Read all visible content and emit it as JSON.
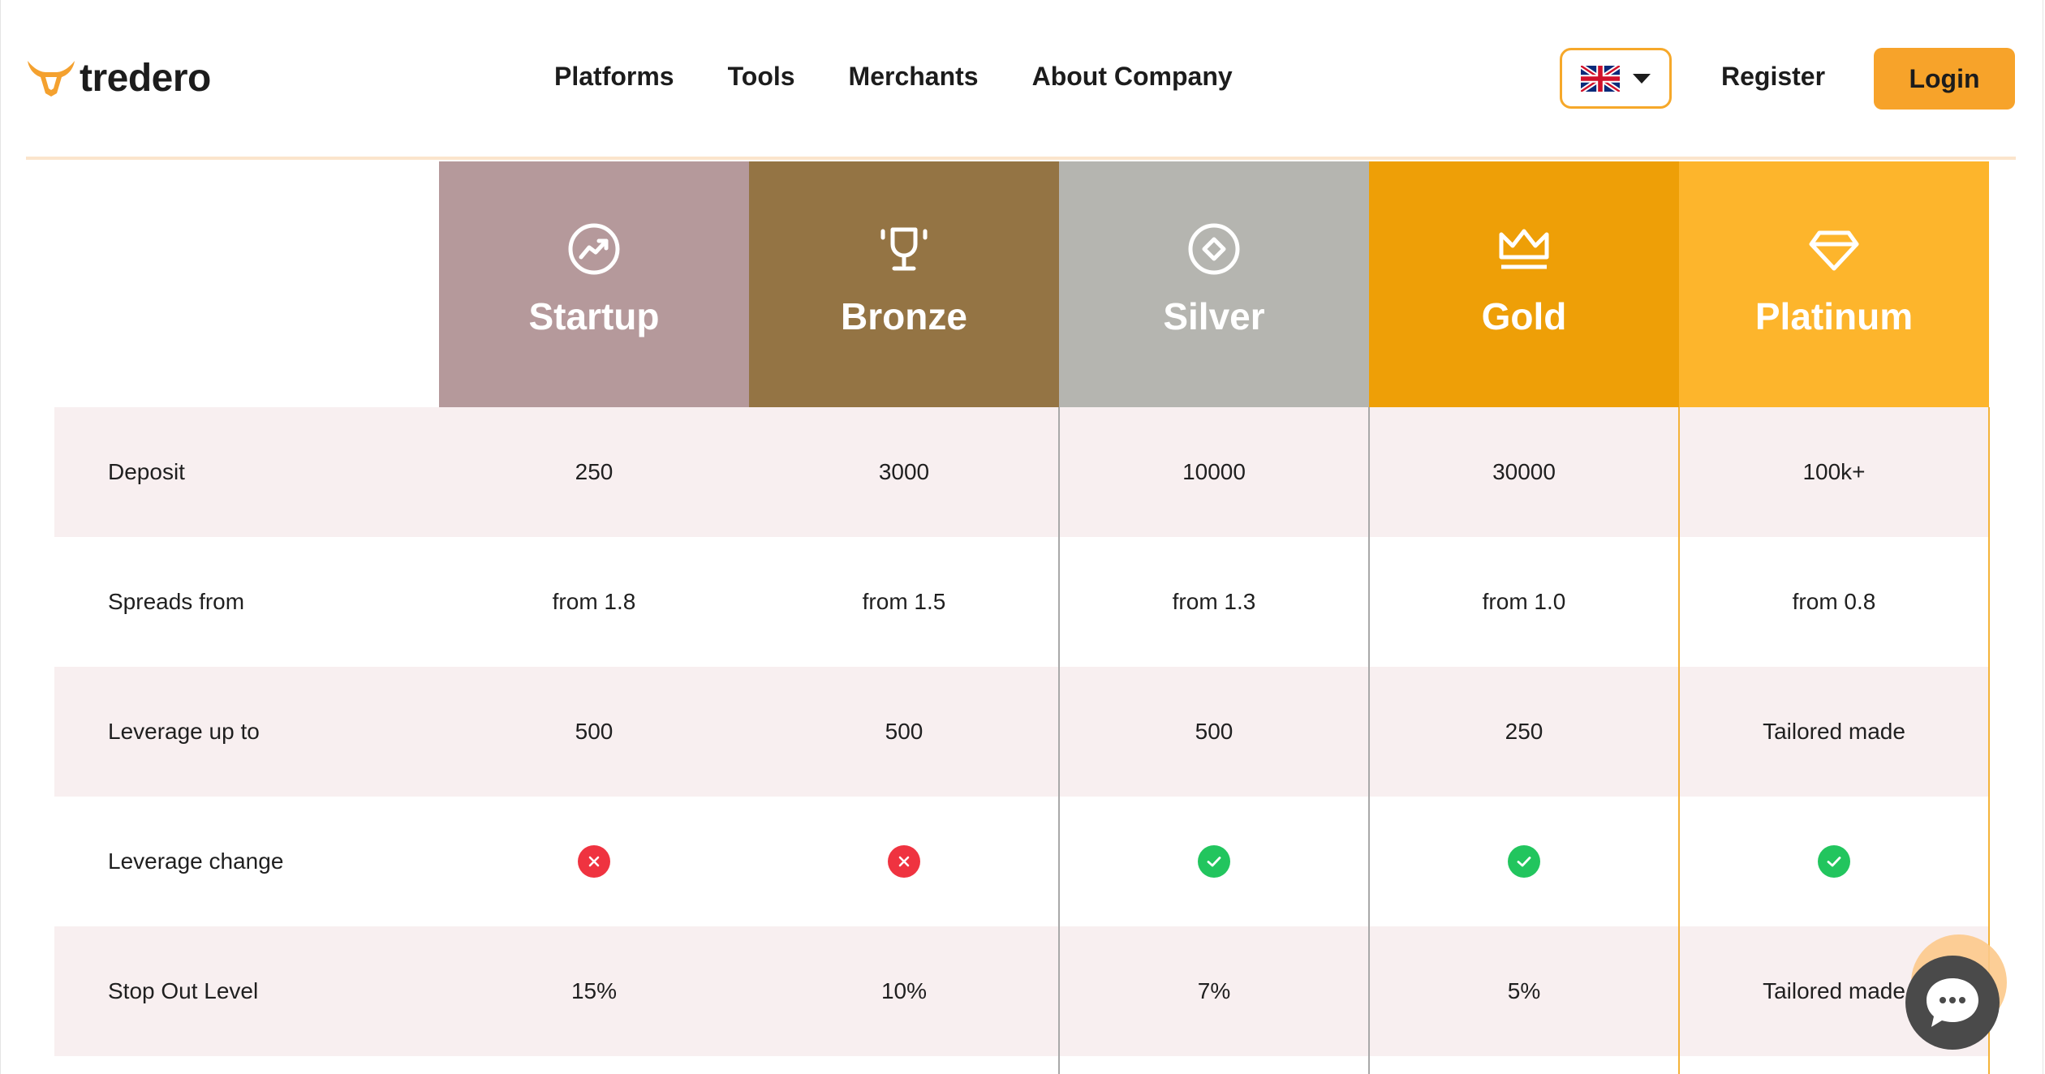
{
  "brand": {
    "name": "tredero"
  },
  "nav": {
    "items": [
      "Platforms",
      "Tools",
      "Merchants",
      "About Company"
    ],
    "language_icon": "uk-flag-icon",
    "register_label": "Register",
    "login_label": "Login"
  },
  "colors": {
    "accent": "#f7a32a",
    "startup": "#b5999b",
    "bronze": "#947444",
    "silver": "#b5b5b0",
    "gold": "#ee9f07",
    "platinum": "#fdb52c",
    "row_shade": "#f8eff0",
    "check": "#22c55e",
    "cross": "#ef3340"
  },
  "plans": [
    {
      "name": "Startup",
      "icon": "trending-up-icon"
    },
    {
      "name": "Bronze",
      "icon": "trophy-icon"
    },
    {
      "name": "Silver",
      "icon": "diamond-circle-icon"
    },
    {
      "name": "Gold",
      "icon": "crown-icon"
    },
    {
      "name": "Platinum",
      "icon": "gem-icon"
    }
  ],
  "rows": [
    {
      "label": "Deposit",
      "values": [
        "250",
        "3000",
        "10000",
        "30000",
        "100k+"
      ]
    },
    {
      "label": "Spreads from",
      "values": [
        "from 1.8",
        "from 1.5",
        "from 1.3",
        "from 1.0",
        "from 0.8"
      ]
    },
    {
      "label": "Leverage up to",
      "values": [
        "500",
        "500",
        "500",
        "250",
        "Tailored made"
      ]
    },
    {
      "label": "Leverage change",
      "icons": [
        "cross-icon",
        "cross-icon",
        "check-icon",
        "check-icon",
        "check-icon"
      ]
    },
    {
      "label": "Stop Out Level",
      "values": [
        "15%",
        "10%",
        "7%",
        "5%",
        "Tailored made"
      ]
    }
  ],
  "chat": {
    "icon": "chat-bubble-icon"
  }
}
